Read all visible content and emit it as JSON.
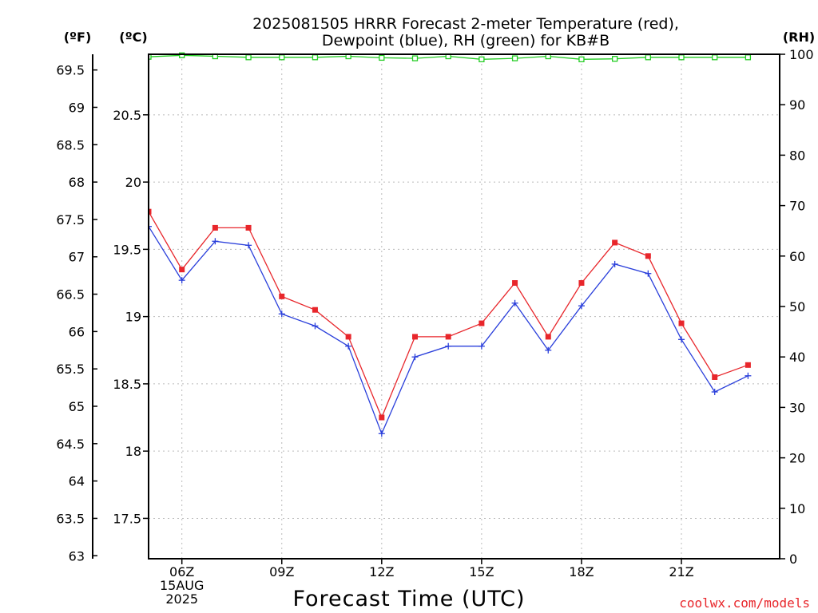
{
  "chart_data": {
    "type": "line",
    "title_line1": "2025081505 HRRR Forecast 2-meter Temperature (red),",
    "title_line2": "Dewpoint (blue), RH (green) for KB#B",
    "xlabel": "Forecast Time (UTC)",
    "credit": "coolwx.com/models",
    "unit_f": "(ºF)",
    "unit_c": "(ºC)",
    "unit_rh": "(RH)",
    "x": [
      5,
      6,
      7,
      8,
      9,
      10,
      11,
      12,
      13,
      14,
      15,
      16,
      17,
      18,
      19,
      20,
      21,
      22,
      23
    ],
    "xlim": [
      5,
      23.95
    ],
    "x_ticks": [
      {
        "x": 6,
        "labels": [
          "06Z",
          "15AUG",
          "2025"
        ]
      },
      {
        "x": 9,
        "labels": [
          "09Z"
        ]
      },
      {
        "x": 12,
        "labels": [
          "12Z"
        ]
      },
      {
        "x": 15,
        "labels": [
          "15Z"
        ]
      },
      {
        "x": 18,
        "labels": [
          "18Z"
        ]
      },
      {
        "x": 21,
        "labels": [
          "21Z"
        ]
      }
    ],
    "ylim_c": [
      17.2,
      20.95
    ],
    "f_ticks": [
      "69.5",
      "69",
      "68.5",
      "68",
      "67.5",
      "67",
      "66.5",
      "66",
      "65.5",
      "65",
      "64.5",
      "64",
      "63.5",
      "63"
    ],
    "c_ticks": [
      "20.5",
      "20",
      "19.5",
      "19",
      "18.5",
      "18",
      "17.5"
    ],
    "rh_ticks": [
      "100",
      "90",
      "80",
      "70",
      "60",
      "50",
      "40",
      "30",
      "20",
      "10",
      "0"
    ],
    "ylim_rh": [
      0,
      100
    ],
    "grid": true,
    "series": [
      {
        "name": "Temperature",
        "color": "#e8262b",
        "marker": "square-filled",
        "values": [
          19.78,
          19.35,
          19.66,
          19.66,
          19.15,
          19.05,
          18.85,
          18.25,
          18.85,
          18.85,
          18.95,
          19.25,
          18.85,
          19.25,
          19.55,
          19.45,
          18.95,
          18.55,
          18.64
        ]
      },
      {
        "name": "Dewpoint",
        "color": "#2a3fdb",
        "marker": "plus",
        "values": [
          19.67,
          19.27,
          19.56,
          19.53,
          19.02,
          18.93,
          18.78,
          18.13,
          18.7,
          18.78,
          18.78,
          19.1,
          18.75,
          19.08,
          19.39,
          19.32,
          18.83,
          18.44,
          18.56
        ]
      },
      {
        "name": "RH",
        "color": "#22cc22",
        "marker": "square-open",
        "values": [
          99.5,
          99.8,
          99.6,
          99.4,
          99.4,
          99.4,
          99.6,
          99.3,
          99.2,
          99.6,
          99.0,
          99.2,
          99.6,
          99.0,
          99.1,
          99.4,
          99.4,
          99.4,
          99.4
        ]
      }
    ]
  }
}
